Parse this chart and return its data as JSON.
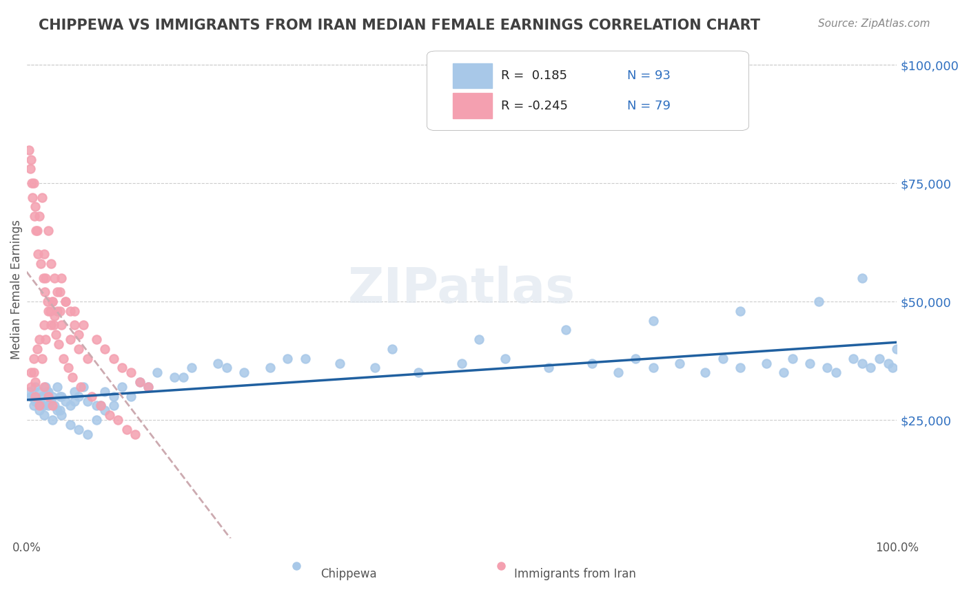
{
  "title": "CHIPPEWA VS IMMIGRANTS FROM IRAN MEDIAN FEMALE EARNINGS CORRELATION CHART",
  "source_text": "Source: ZipAtlas.com",
  "xlabel": "",
  "ylabel": "Median Female Earnings",
  "watermark": "ZIPatlas",
  "legend_r1": "R =  0.185",
  "legend_n1": "N = 93",
  "legend_r2": "R = -0.245",
  "legend_n2": "N = 79",
  "chippewa_color": "#a8c8e8",
  "iran_color": "#f4a0b0",
  "trend_blue": "#2060a0",
  "trend_pink": "#e08090",
  "ytick_labels": [
    "$25,000",
    "$50,000",
    "$75,000",
    "$100,000"
  ],
  "ytick_values": [
    25000,
    50000,
    75000,
    100000
  ],
  "ytick_color": "#3070c0",
  "xtick_labels": [
    "0.0%",
    "100.0%"
  ],
  "xmin": 0.0,
  "xmax": 100.0,
  "ymin": 0,
  "ymax": 105000,
  "title_color": "#404040",
  "title_fontsize": 15,
  "chippewa_x": [
    0.5,
    0.8,
    1.0,
    1.2,
    1.5,
    1.8,
    2.0,
    2.2,
    2.5,
    2.8,
    3.0,
    3.2,
    3.5,
    3.8,
    4.0,
    4.5,
    5.0,
    5.5,
    6.0,
    6.5,
    7.0,
    8.0,
    9.0,
    10.0,
    11.0,
    13.0,
    15.0,
    17.0,
    19.0,
    22.0,
    25.0,
    28.0,
    32.0,
    36.0,
    40.0,
    45.0,
    50.0,
    55.0,
    60.0,
    65.0,
    68.0,
    70.0,
    72.0,
    75.0,
    78.0,
    80.0,
    82.0,
    85.0,
    87.0,
    88.0,
    90.0,
    92.0,
    93.0,
    95.0,
    96.0,
    97.0,
    98.0,
    99.0,
    99.5,
    100.0,
    1.0,
    1.5,
    2.0,
    2.5,
    3.0,
    3.5,
    4.0,
    5.0,
    6.0,
    7.0,
    8.0,
    9.0,
    10.0,
    12.0,
    14.0,
    18.0,
    23.0,
    30.0,
    42.0,
    52.0,
    62.0,
    72.0,
    82.0,
    91.0,
    96.0,
    0.3,
    0.6,
    1.1,
    1.8,
    2.3,
    3.8,
    5.5,
    8.5
  ],
  "chippewa_y": [
    30000,
    28000,
    32000,
    29000,
    31000,
    30000,
    28000,
    32000,
    31000,
    29000,
    30000,
    28000,
    32000,
    27000,
    30000,
    29000,
    28000,
    31000,
    30000,
    32000,
    29000,
    28000,
    31000,
    30000,
    32000,
    33000,
    35000,
    34000,
    36000,
    37000,
    35000,
    36000,
    38000,
    37000,
    36000,
    35000,
    37000,
    38000,
    36000,
    37000,
    35000,
    38000,
    36000,
    37000,
    35000,
    38000,
    36000,
    37000,
    35000,
    38000,
    37000,
    36000,
    35000,
    38000,
    37000,
    36000,
    38000,
    37000,
    36000,
    40000,
    29000,
    27000,
    26000,
    28000,
    25000,
    27000,
    26000,
    24000,
    23000,
    22000,
    25000,
    27000,
    28000,
    30000,
    32000,
    34000,
    36000,
    38000,
    40000,
    42000,
    44000,
    46000,
    48000,
    50000,
    55000,
    31000,
    30000,
    29000,
    28000,
    31000,
    30000,
    29000,
    28000
  ],
  "iran_x": [
    0.5,
    0.8,
    1.0,
    1.2,
    1.5,
    1.8,
    2.0,
    2.2,
    2.5,
    2.8,
    3.0,
    3.2,
    3.5,
    3.8,
    4.0,
    4.5,
    5.0,
    5.5,
    6.0,
    6.5,
    7.0,
    8.0,
    9.0,
    10.0,
    11.0,
    12.0,
    13.0,
    14.0,
    0.3,
    0.4,
    0.6,
    0.7,
    0.9,
    1.1,
    1.3,
    1.6,
    1.9,
    2.1,
    2.4,
    2.7,
    3.1,
    3.4,
    3.7,
    4.2,
    4.8,
    5.3,
    6.2,
    7.5,
    8.5,
    9.5,
    10.5,
    11.5,
    12.5,
    0.5,
    0.8,
    1.0,
    1.2,
    1.5,
    1.8,
    2.0,
    2.2,
    2.5,
    2.8,
    3.0,
    3.2,
    3.5,
    3.8,
    4.0,
    4.5,
    5.0,
    5.5,
    6.0,
    0.5,
    0.8,
    1.0,
    1.5,
    2.0,
    2.5,
    3.0
  ],
  "iran_y": [
    80000,
    75000,
    70000,
    65000,
    68000,
    72000,
    60000,
    55000,
    65000,
    58000,
    50000,
    55000,
    48000,
    52000,
    45000,
    50000,
    42000,
    48000,
    40000,
    45000,
    38000,
    42000,
    40000,
    38000,
    36000,
    35000,
    33000,
    32000,
    82000,
    78000,
    75000,
    72000,
    68000,
    65000,
    60000,
    58000,
    55000,
    52000,
    50000,
    48000,
    45000,
    43000,
    41000,
    38000,
    36000,
    34000,
    32000,
    30000,
    28000,
    26000,
    25000,
    23000,
    22000,
    35000,
    38000,
    33000,
    40000,
    42000,
    38000,
    45000,
    42000,
    48000,
    45000,
    50000,
    47000,
    52000,
    48000,
    55000,
    50000,
    48000,
    45000,
    43000,
    32000,
    35000,
    30000,
    28000,
    32000,
    30000,
    28000
  ]
}
